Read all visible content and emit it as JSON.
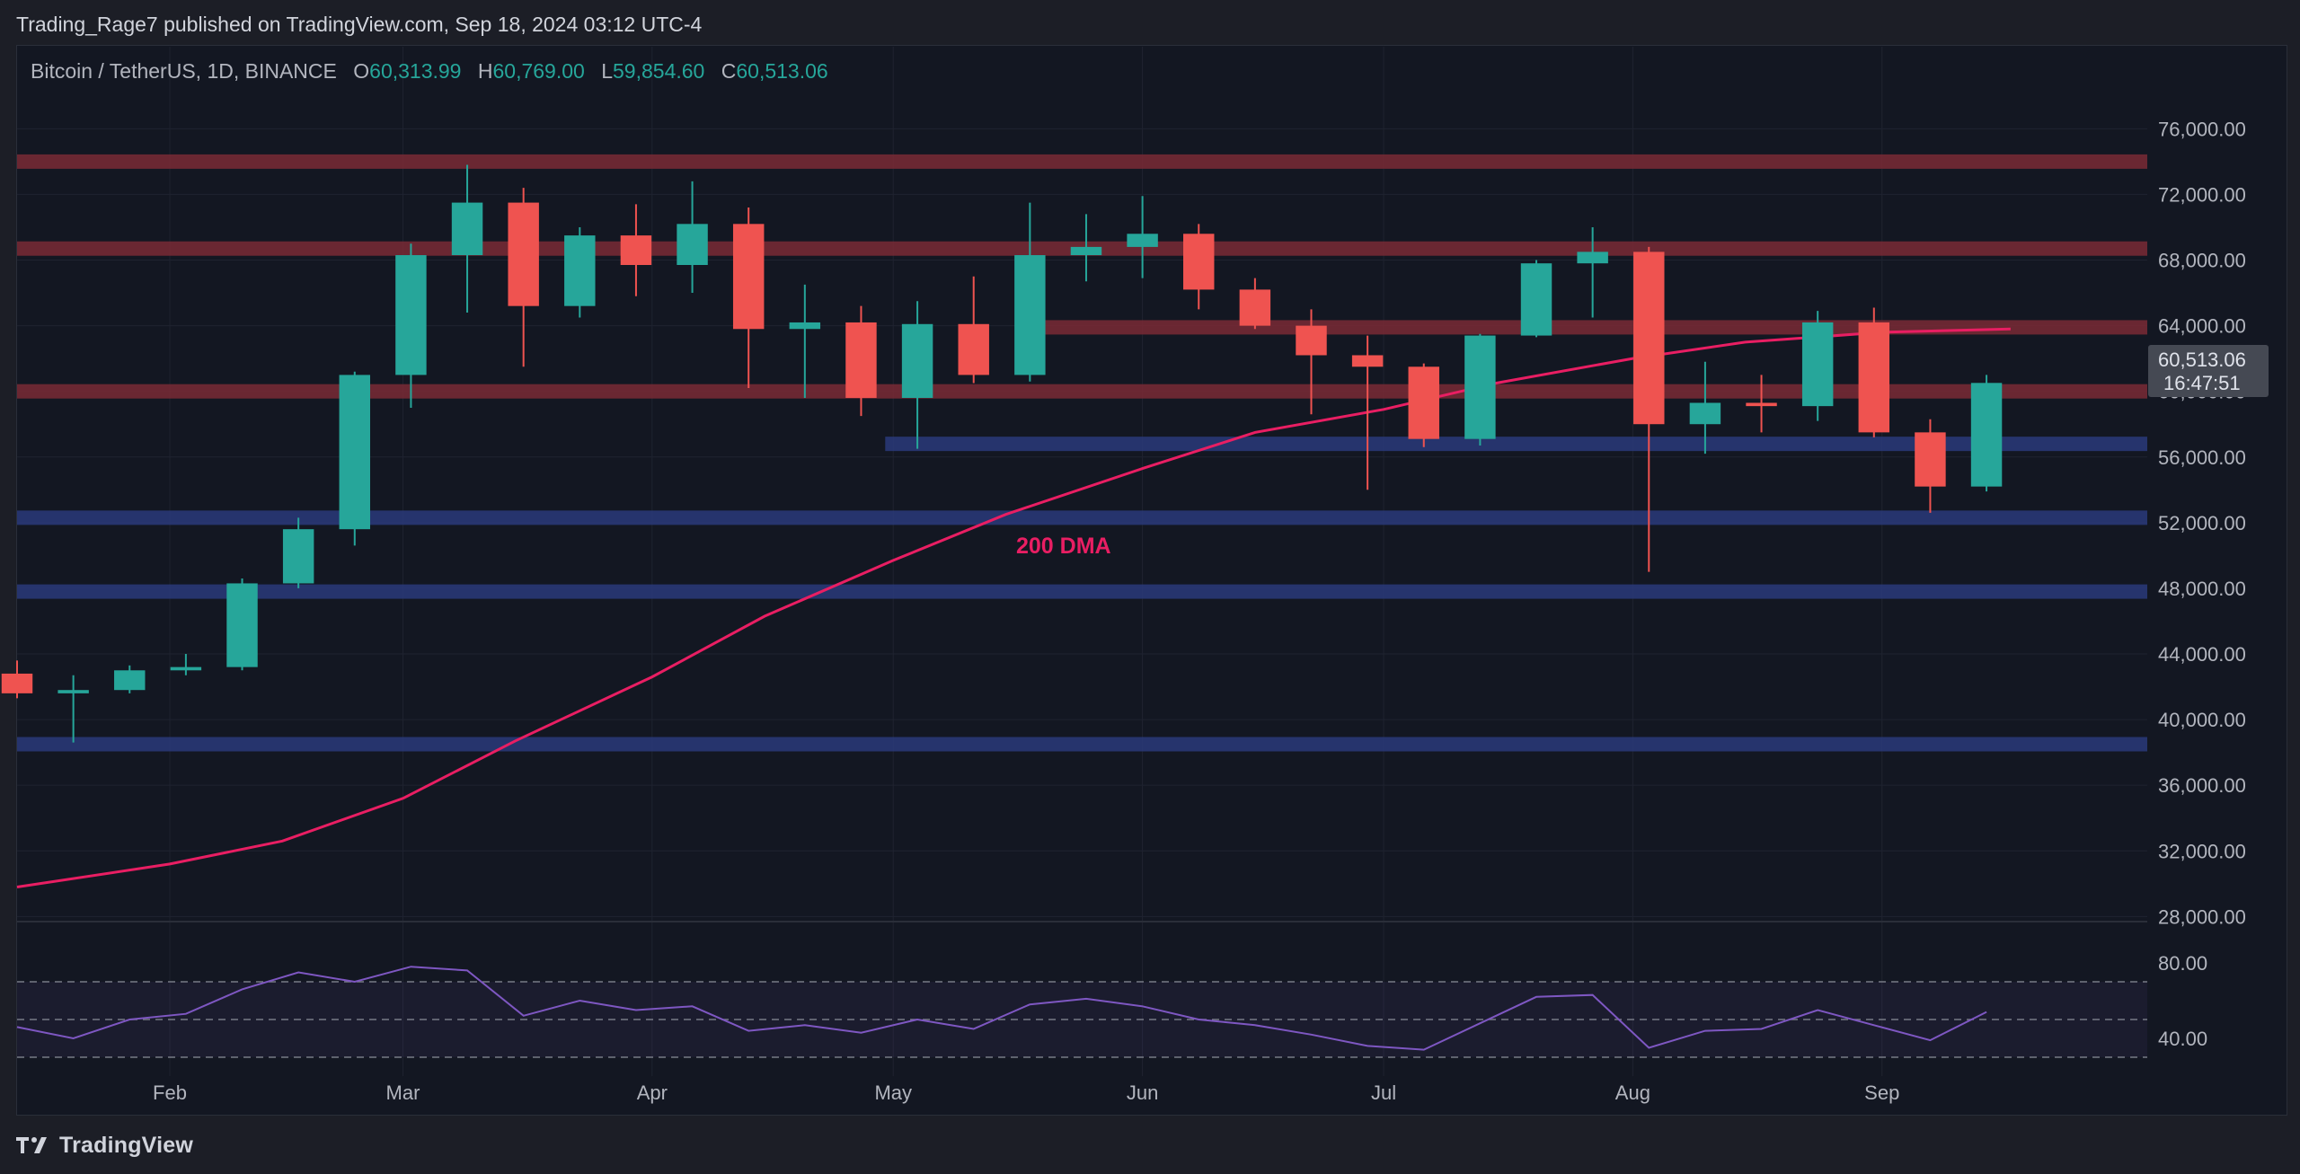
{
  "header": {
    "publisher": "Trading_Rage7 published on TradingView.com, Sep 18, 2024 03:12 UTC-4"
  },
  "legend": {
    "symbol": "Bitcoin / TetherUS, 1D, BINANCE",
    "open_label": "O",
    "open": "60,313.99",
    "high_label": "H",
    "high": "60,769.00",
    "low_label": "L",
    "low": "59,854.60",
    "close_label": "C",
    "close": "60,513.06"
  },
  "price_badge": {
    "price": "60,513.06",
    "countdown": "16:47:51"
  },
  "annotation": {
    "label": "200 DMA"
  },
  "footer": {
    "brand": "TradingView"
  },
  "colors": {
    "bull": "#26a69a",
    "bear": "#ef5350",
    "dma": "#e91e63",
    "rsi": "#7e57c2",
    "resistance": "#7a2a35",
    "support": "#2a3a7a",
    "background": "#131722"
  },
  "chart_data": [
    {
      "type": "candlestick",
      "title": "",
      "y_axis": {
        "ticks": [
          76000,
          72000,
          68000,
          64000,
          60000,
          56000,
          52000,
          48000,
          44000,
          40000,
          36000,
          32000,
          28000
        ],
        "tick_labels": [
          "76,000.00",
          "72,000.00",
          "68,000.00",
          "64,000.00",
          "60,000.00",
          "56,000.00",
          "52,000.00",
          "48,000.00",
          "44,000.00",
          "40,000.00",
          "36,000.00",
          "32,000.00",
          "28,000.00"
        ],
        "range": [
          27800,
          81000
        ]
      },
      "x_axis": {
        "range": [
          "2024-01-13",
          "2024-10-04"
        ],
        "ticks": [
          "2024-02-01",
          "2024-03-01",
          "2024-04-01",
          "2024-05-01",
          "2024-06-01",
          "2024-07-01",
          "2024-08-01",
          "2024-09-01"
        ],
        "tick_labels": [
          "Feb",
          "Mar",
          "Apr",
          "May",
          "Jun",
          "Jul",
          "Aug",
          "Sep"
        ]
      },
      "levels": [
        {
          "kind": "resistance",
          "price": 74000,
          "from": "2024-01-13"
        },
        {
          "kind": "resistance",
          "price": 68700,
          "from": "2024-01-13"
        },
        {
          "kind": "resistance",
          "price": 63900,
          "from": "2024-05-18"
        },
        {
          "kind": "resistance",
          "price": 60000,
          "from": "2024-01-13"
        },
        {
          "kind": "support",
          "price": 56800,
          "from": "2024-04-30"
        },
        {
          "kind": "support",
          "price": 52300,
          "from": "2024-01-13"
        },
        {
          "kind": "support",
          "price": 47800,
          "from": "2024-01-13"
        },
        {
          "kind": "support",
          "price": 38500,
          "from": "2024-01-13"
        }
      ],
      "ma_200": {
        "x": [
          "2024-01-13",
          "2024-02-01",
          "2024-02-15",
          "2024-03-01",
          "2024-03-15",
          "2024-04-01",
          "2024-04-15",
          "2024-05-01",
          "2024-05-15",
          "2024-06-01",
          "2024-06-15",
          "2024-07-01",
          "2024-07-15",
          "2024-08-01",
          "2024-08-15",
          "2024-09-01",
          "2024-09-17"
        ],
        "y": [
          29800,
          31200,
          32600,
          35200,
          38700,
          42600,
          46300,
          49700,
          52500,
          55300,
          57500,
          58900,
          60500,
          62000,
          63000,
          63600,
          63800
        ]
      },
      "candles": {
        "x": [
          "2024-01-13",
          "2024-01-20",
          "2024-01-27",
          "2024-02-03",
          "2024-02-10",
          "2024-02-17",
          "2024-02-24",
          "2024-03-02",
          "2024-03-09",
          "2024-03-16",
          "2024-03-23",
          "2024-03-30",
          "2024-04-06",
          "2024-04-13",
          "2024-04-20",
          "2024-04-27",
          "2024-05-04",
          "2024-05-11",
          "2024-05-18",
          "2024-05-25",
          "2024-06-01",
          "2024-06-08",
          "2024-06-15",
          "2024-06-22",
          "2024-06-29",
          "2024-07-06",
          "2024-07-13",
          "2024-07-20",
          "2024-07-27",
          "2024-08-03",
          "2024-08-10",
          "2024-08-17",
          "2024-08-24",
          "2024-08-31",
          "2024-09-07",
          "2024-09-14"
        ],
        "o": [
          42800,
          41600,
          41800,
          43000,
          43200,
          48300,
          51600,
          61000,
          68300,
          71500,
          65200,
          69500,
          67700,
          70200,
          63800,
          64200,
          59600,
          64100,
          61000,
          68300,
          68800,
          69600,
          66200,
          64000,
          62200,
          61500,
          57100,
          63400,
          67800,
          68500,
          58000,
          59300,
          59100,
          64200,
          57500,
          54200
        ],
        "h": [
          43600,
          42700,
          43300,
          44000,
          48600,
          52300,
          61200,
          69000,
          73800,
          72400,
          70000,
          71400,
          72800,
          71200,
          66500,
          65200,
          65500,
          67000,
          71500,
          70800,
          71900,
          70200,
          66900,
          65000,
          63400,
          61700,
          63500,
          68000,
          70000,
          68800,
          61800,
          61000,
          64900,
          65100,
          58300,
          61000
        ],
        "l": [
          41300,
          38600,
          41600,
          42700,
          43000,
          48000,
          50600,
          59000,
          64800,
          61500,
          64500,
          65800,
          66000,
          60200,
          59600,
          58500,
          56500,
          60500,
          60600,
          66700,
          66900,
          65000,
          63800,
          58600,
          54000,
          56600,
          56700,
          63300,
          64500,
          49000,
          56200,
          57500,
          58200,
          57200,
          52600,
          53900
        ],
        "c": [
          41600,
          41800,
          43000,
          43200,
          48300,
          51600,
          61000,
          68300,
          71500,
          65200,
          69500,
          67700,
          70200,
          63800,
          64200,
          59600,
          64100,
          61000,
          68300,
          68800,
          69600,
          66200,
          64000,
          62200,
          61500,
          57100,
          63400,
          67800,
          68500,
          58000,
          59300,
          59100,
          64200,
          57500,
          54200,
          60513
        ]
      }
    },
    {
      "type": "line",
      "title": "",
      "y_axis": {
        "ticks": [
          80,
          40
        ],
        "tick_labels": [
          "80.00",
          "40.00"
        ],
        "range": [
          20,
          100
        ]
      },
      "bands": [
        70,
        50,
        30
      ],
      "series": [
        {
          "x": [
            "2024-01-13",
            "2024-01-20",
            "2024-01-27",
            "2024-02-03",
            "2024-02-10",
            "2024-02-17",
            "2024-02-24",
            "2024-03-02",
            "2024-03-09",
            "2024-03-16",
            "2024-03-23",
            "2024-03-30",
            "2024-04-06",
            "2024-04-13",
            "2024-04-20",
            "2024-04-27",
            "2024-05-04",
            "2024-05-11",
            "2024-05-18",
            "2024-05-25",
            "2024-06-01",
            "2024-06-08",
            "2024-06-15",
            "2024-06-22",
            "2024-06-29",
            "2024-07-06",
            "2024-07-13",
            "2024-07-20",
            "2024-07-27",
            "2024-08-03",
            "2024-08-10",
            "2024-08-17",
            "2024-08-24",
            "2024-08-31",
            "2024-09-07",
            "2024-09-14"
          ],
          "values": [
            46,
            40,
            50,
            53,
            66,
            75,
            70,
            78,
            76,
            52,
            60,
            55,
            57,
            44,
            47,
            43,
            50,
            45,
            58,
            61,
            57,
            50,
            47,
            42,
            36,
            34,
            48,
            62,
            63,
            35,
            44,
            45,
            55,
            47,
            39,
            54
          ]
        }
      ]
    }
  ]
}
